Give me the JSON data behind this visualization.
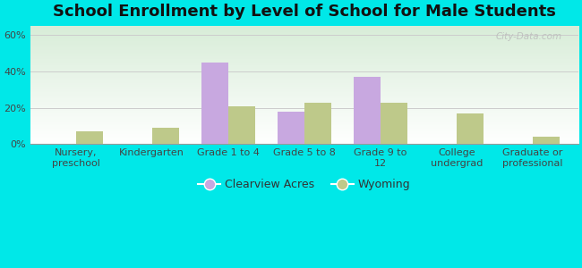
{
  "title": "School Enrollment by Level of School for Male Students",
  "categories": [
    "Nursery,\npreschool",
    "Kindergarten",
    "Grade 1 to 4",
    "Grade 5 to 8",
    "Grade 9 to\n12",
    "College\nundergrad",
    "Graduate or\nprofessional"
  ],
  "clearview_values": [
    0,
    0,
    45,
    18,
    37,
    0,
    0
  ],
  "wyoming_values": [
    7,
    9,
    21,
    23,
    23,
    17,
    4
  ],
  "clearview_color": "#c8a8e0",
  "wyoming_color": "#bec98a",
  "background_color": "#00e8e8",
  "ylim": [
    0,
    65
  ],
  "yticks": [
    0,
    20,
    40,
    60
  ],
  "ytick_labels": [
    "0%",
    "20%",
    "40%",
    "60%"
  ],
  "legend_labels": [
    "Clearview Acres",
    "Wyoming"
  ],
  "title_fontsize": 13,
  "tick_fontsize": 8,
  "legend_fontsize": 9,
  "bar_width": 0.35,
  "grid_color": "#cccccc",
  "plot_bg_top": "#ffffff",
  "plot_bg_bottom": "#d8edd8",
  "watermark": "City-Data.com"
}
